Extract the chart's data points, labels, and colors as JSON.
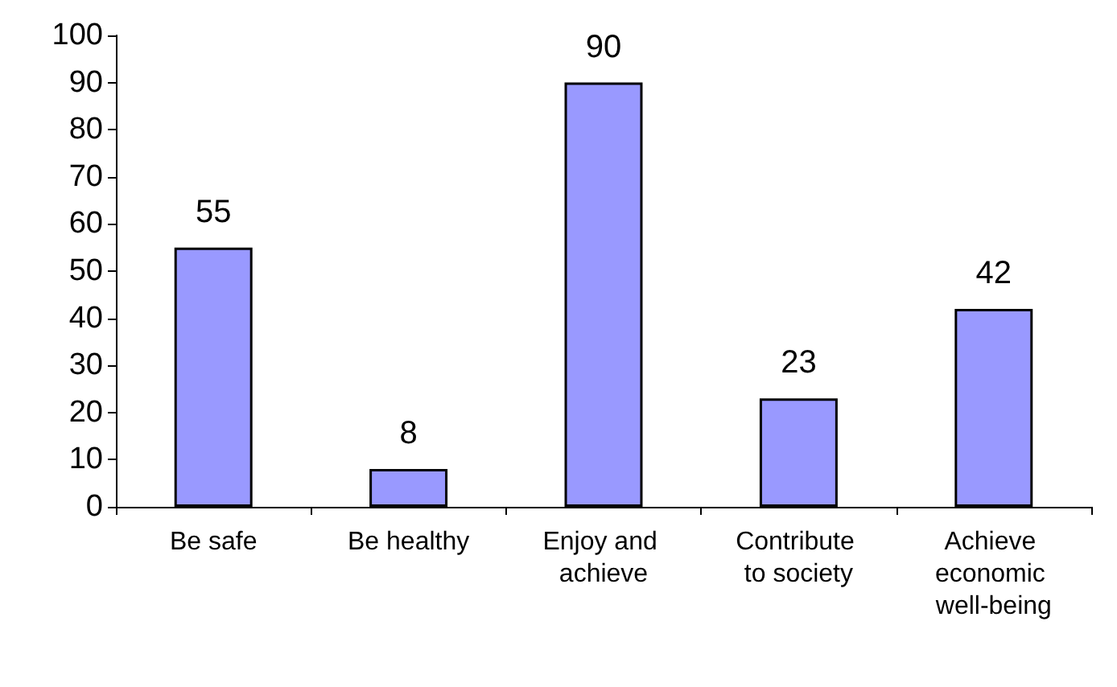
{
  "chart_data": {
    "type": "bar",
    "categories": [
      "Be safe",
      "Be healthy",
      "Enjoy and achieve",
      "Contribute to society",
      "Achieve economic well-being"
    ],
    "values": [
      55,
      8,
      90,
      23,
      42
    ],
    "color": "#9999ff",
    "ylim": [
      0,
      100
    ],
    "yticks": [
      0,
      10,
      20,
      30,
      40,
      50,
      60,
      70,
      80,
      90,
      100
    ],
    "data_labels": true
  }
}
